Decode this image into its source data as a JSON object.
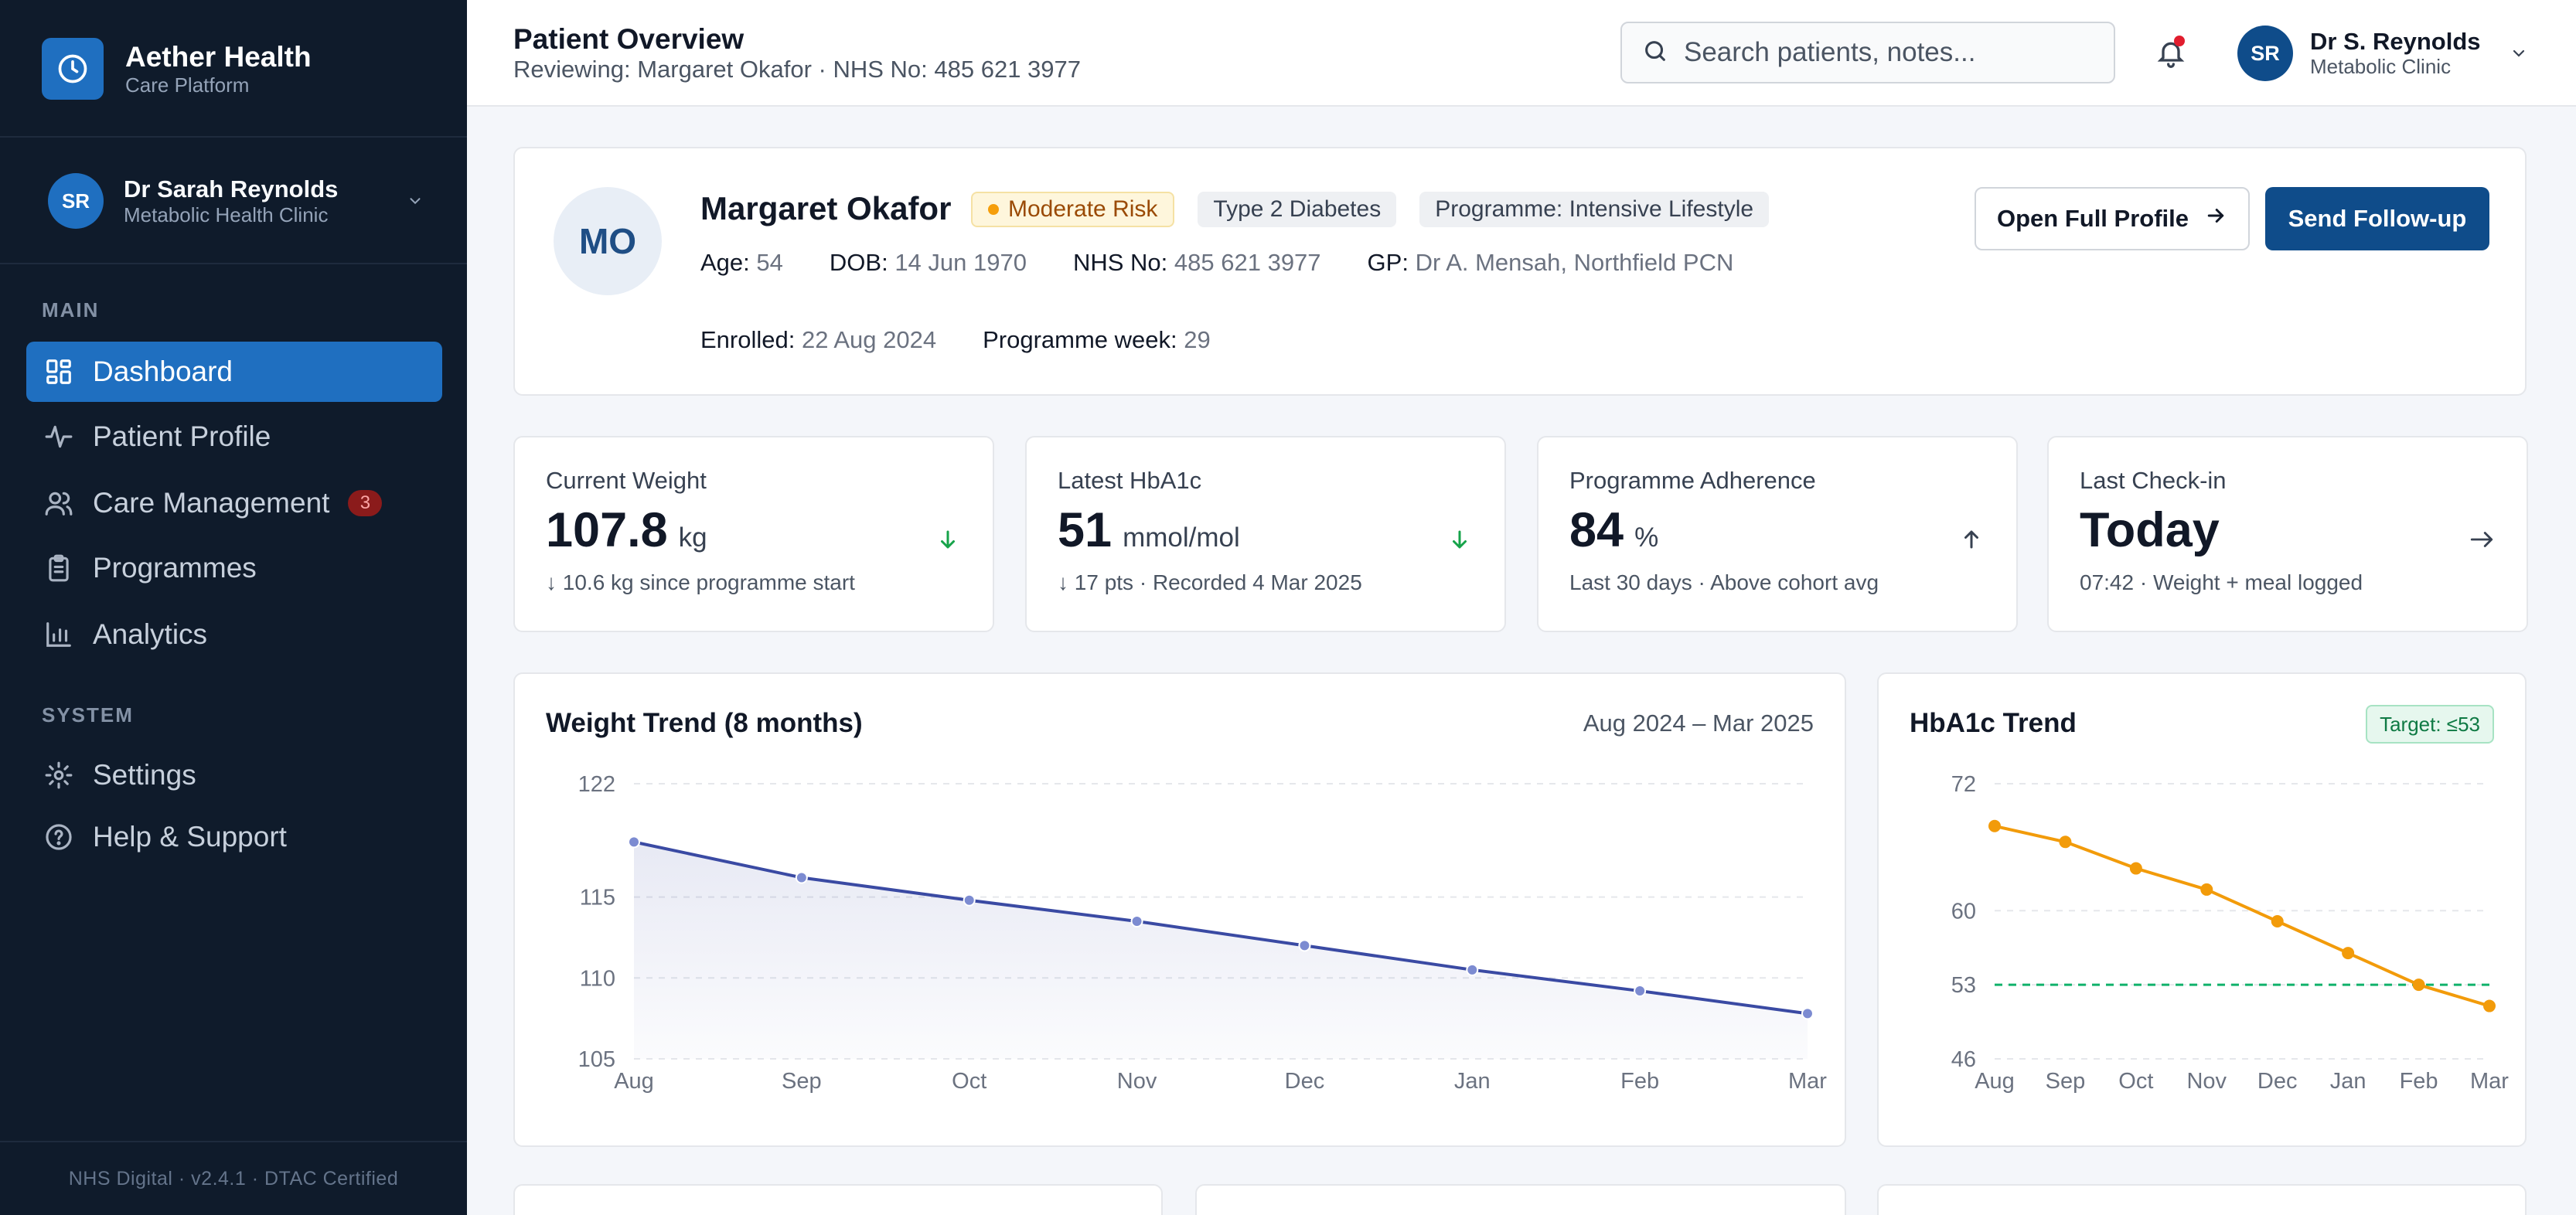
{
  "brand": {
    "title": "Aether Health",
    "subtitle": "Care Platform",
    "logo_icon": "clock-icon"
  },
  "sidebar_user": {
    "initials": "SR",
    "name": "Dr Sarah Reynolds",
    "org": "Metabolic Health Clinic"
  },
  "nav": {
    "main_label": "MAIN",
    "system_label": "SYSTEM",
    "items": [
      {
        "label": "Dashboard",
        "icon": "grid-icon",
        "active": true
      },
      {
        "label": "Patient Profile",
        "icon": "activity-icon"
      },
      {
        "label": "Care Management",
        "icon": "users-icon",
        "badge": "3"
      },
      {
        "label": "Programmes",
        "icon": "clipboard-icon"
      },
      {
        "label": "Analytics",
        "icon": "bar-chart-icon"
      }
    ],
    "system_items": [
      {
        "label": "Settings",
        "icon": "gear-icon"
      },
      {
        "label": "Help & Support",
        "icon": "help-icon"
      }
    ],
    "footer": "NHS Digital  ·  v2.4.1  ·  DTAC Certified"
  },
  "header": {
    "title": "Patient Overview",
    "subtitle": "Reviewing: Margaret Okafor · NHS No: 485 621 3977",
    "search_placeholder": "Search patients, notes...",
    "user": {
      "initials": "SR",
      "name": "Dr S. Reynolds",
      "org": "Metabolic Clinic"
    }
  },
  "patient": {
    "initials": "MO",
    "name": "Margaret Okafor",
    "risk": "Moderate Risk",
    "tags": [
      "Type 2 Diabetes",
      "Programme: Intensive Lifestyle"
    ],
    "meta_row1": [
      {
        "label": "Age:",
        "value": "54"
      },
      {
        "label": "DOB:",
        "value": "14 Jun 1970"
      },
      {
        "label": "NHS No:",
        "value": "485 621 3977"
      },
      {
        "label": "GP:",
        "value": "Dr A. Mensah, Northfield PCN"
      }
    ],
    "meta_row2": [
      {
        "label": "Enrolled:",
        "value": "22 Aug 2024"
      },
      {
        "label": "Programme week:",
        "value": "29"
      }
    ],
    "open_profile_label": "Open Full Profile",
    "follow_up_label": "Send Follow-up"
  },
  "stats": [
    {
      "label": "Current Weight",
      "value": "107.8",
      "unit": "kg",
      "note": "↓ 10.6 kg since programme start",
      "trend": "down-good"
    },
    {
      "label": "Latest HbA1c",
      "value": "51",
      "unit": "mmol/mol",
      "note": "↓ 17 pts · Recorded 4 Mar 2025",
      "trend": "down-good"
    },
    {
      "label": "Programme Adherence",
      "value": "84",
      "unit": "%",
      "note": "Last 30 days · Above cohort avg",
      "trend": "up"
    },
    {
      "label": "Last Check-in",
      "value": "Today",
      "unit": "",
      "note": "07:42 · Weight + meal logged",
      "trend": "arrow-right"
    }
  ],
  "chart_data": [
    {
      "type": "area",
      "title": "Weight Trend (8 months)",
      "range_label": "Aug 2024 – Mar 2025",
      "categories": [
        "Aug",
        "Sep",
        "Oct",
        "Nov",
        "Dec",
        "Jan",
        "Feb",
        "Mar"
      ],
      "values": [
        118.4,
        116.2,
        114.8,
        113.5,
        112.0,
        110.5,
        109.2,
        107.8
      ],
      "y_ticks": [
        "122",
        "115",
        "110",
        "105"
      ],
      "y_tick_values": [
        122,
        115,
        110,
        105
      ],
      "ylim": [
        105,
        122
      ],
      "color": "#3a4aa3",
      "grid": true
    },
    {
      "type": "line",
      "title": "HbA1c Trend",
      "target_label": "Target: ≤53",
      "target_value": 53,
      "categories": [
        "Aug",
        "Sep",
        "Oct",
        "Nov",
        "Dec",
        "Jan",
        "Feb",
        "Mar"
      ],
      "values": [
        68,
        66.5,
        64,
        62,
        59,
        56,
        53,
        51
      ],
      "y_ticks": [
        "72",
        "60",
        "53",
        "46"
      ],
      "y_tick_values": [
        72,
        60,
        53,
        46
      ],
      "ylim": [
        46,
        72
      ],
      "color": "#f29b0a",
      "target_color": "#10b26b",
      "grid": true
    }
  ]
}
